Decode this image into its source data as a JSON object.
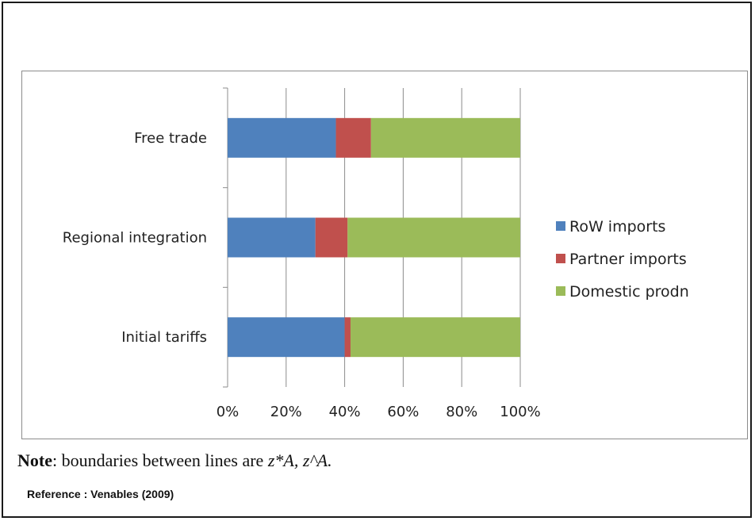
{
  "chart_data": {
    "type": "bar",
    "orientation": "horizontal",
    "stacked": "percent",
    "categories": [
      "Initial tariffs",
      "Regional integration",
      "Free trade"
    ],
    "series": [
      {
        "name": "RoW imports",
        "values": [
          40,
          30,
          37
        ],
        "color": "#4f81bd"
      },
      {
        "name": "Partner imports",
        "values": [
          2,
          11,
          12
        ],
        "color": "#c0504d"
      },
      {
        "name": "Domestic prodn",
        "values": [
          58,
          59,
          51
        ],
        "color": "#9bbb59"
      }
    ],
    "xlim": [
      0,
      100
    ],
    "xticks": [
      "0%",
      "20%",
      "40%",
      "60%",
      "80%",
      "100%"
    ],
    "grid": "vertical",
    "legend": "right"
  },
  "note": {
    "bold": "Note",
    "text": ": boundaries between lines are ",
    "math": "z*A,  z^A."
  },
  "reference": "Reference : Venables (2009)"
}
